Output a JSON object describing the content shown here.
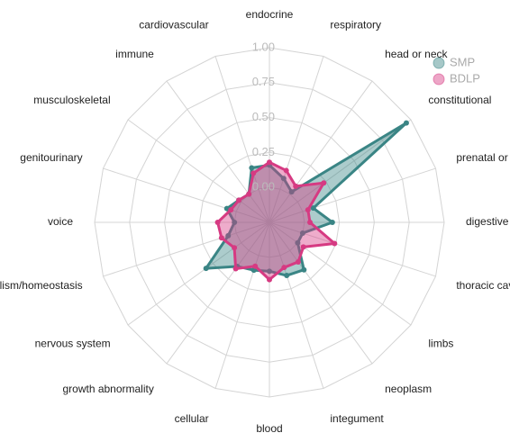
{
  "chart_data": {
    "type": "radar",
    "categories": [
      "endocrine",
      "respiratory",
      "head or neck",
      "constitutional",
      "prenatal or birth",
      "digestive",
      "thoracic cavity",
      "limbs",
      "neoplasm",
      "integument",
      "blood",
      "cellular",
      "growth abnormality",
      "nervous system",
      "metabolism/homeostasis",
      "voice",
      "genitourinary",
      "musculoskeletal",
      "immune",
      "cardiovascular"
    ],
    "series": [
      {
        "name": "SMP",
        "color": "#3a8585",
        "values": [
          0.16,
          0.08,
          0.02,
          0.96,
          0.08,
          0.2,
          0.0,
          0.0,
          0.17,
          0.15,
          0.1,
          0.11,
          0.14,
          0.31,
          0.06,
          0.0,
          0.07,
          0.02,
          0.0,
          0.16
        ]
      },
      {
        "name": "BDLP",
        "color": "#d63a82",
        "values": [
          0.18,
          0.14,
          0.07,
          0.23,
          0.04,
          0.04,
          0.24,
          0.05,
          0.1,
          0.09,
          0.16,
          0.08,
          0.16,
          0.06,
          0.11,
          0.12,
          0.04,
          0.02,
          0.0,
          0.12
        ]
      }
    ],
    "ylim": [
      -0.25,
      1.0
    ],
    "yticks": [
      {
        "value": 0,
        "label": "0.00"
      },
      {
        "value": 0.25,
        "label": "0.25"
      },
      {
        "value": 0.5,
        "label": "0.50"
      },
      {
        "value": 0.75,
        "label": "0.75"
      },
      {
        "value": 1,
        "label": "1.00"
      }
    ],
    "grid": true
  }
}
